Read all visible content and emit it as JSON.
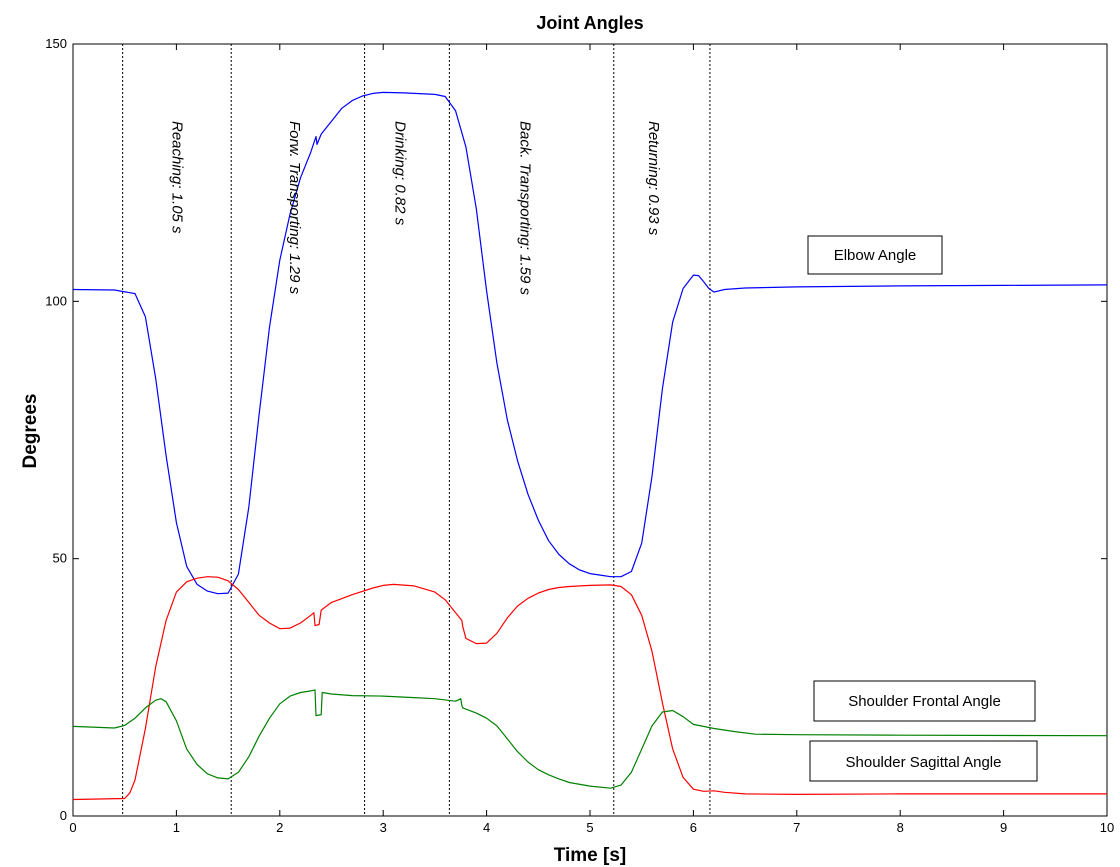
{
  "chart_data": {
    "type": "line",
    "title": "Joint Angles",
    "xlabel": "Time [s]",
    "ylabel": "Degrees",
    "xlim": [
      0,
      10
    ],
    "ylim": [
      0,
      150
    ],
    "xticks": [
      0,
      1,
      2,
      3,
      4,
      5,
      6,
      7,
      8,
      9,
      10
    ],
    "yticks": [
      0,
      50,
      100,
      150
    ],
    "grid": false,
    "phase_boundaries": [
      0.48,
      1.53,
      2.82,
      3.64,
      5.23,
      6.16
    ],
    "phases": [
      {
        "label": "Reaching: 1.05 s",
        "x": 0.96
      },
      {
        "label": "Forw. Transporting: 1.29 s",
        "x": 2.1
      },
      {
        "label": "Drinking: 0.82 s",
        "x": 3.12
      },
      {
        "label": "Back. Transporting: 1.59 s",
        "x": 4.33
      },
      {
        "label": "Returning: 0.93 s",
        "x": 5.57
      }
    ],
    "annotations": [
      {
        "text": "Elbow Angle",
        "series": "elbow"
      },
      {
        "text": "Shoulder Frontal Angle",
        "series": "frontal"
      },
      {
        "text": "Shoulder Sagittal Angle",
        "series": "sagittal"
      }
    ],
    "series": [
      {
        "id": "elbow",
        "color": "#0000ff",
        "x": [
          0,
          0.4,
          0.6,
          0.7,
          0.8,
          0.9,
          1.0,
          1.1,
          1.2,
          1.3,
          1.4,
          1.5,
          1.6,
          1.7,
          1.8,
          1.9,
          2.0,
          2.1,
          2.2,
          2.3,
          2.35,
          2.36,
          2.4,
          2.5,
          2.6,
          2.7,
          2.8,
          2.9,
          3.0,
          3.2,
          3.5,
          3.6,
          3.7,
          3.8,
          3.9,
          4.0,
          4.1,
          4.2,
          4.3,
          4.4,
          4.5,
          4.6,
          4.7,
          4.8,
          4.9,
          5.0,
          5.1,
          5.2,
          5.3,
          5.4,
          5.5,
          5.6,
          5.7,
          5.8,
          5.9,
          6.0,
          6.05,
          6.1,
          6.15,
          6.2,
          6.3,
          6.5,
          7.0,
          8.0,
          9.0,
          10.0
        ],
        "y": [
          102.3,
          102.2,
          101.5,
          97,
          85,
          70,
          57,
          48.5,
          45,
          43.7,
          43.2,
          43.3,
          47,
          60,
          78,
          95,
          108,
          117,
          124,
          129,
          132,
          130.5,
          132.5,
          135,
          137.5,
          139,
          139.9,
          140.4,
          140.6,
          140.5,
          140.2,
          139.8,
          137,
          130,
          118,
          102,
          88,
          77,
          69,
          62.5,
          57.5,
          53.5,
          50.8,
          49,
          47.8,
          47.1,
          46.8,
          46.5,
          46.5,
          47.5,
          53,
          66,
          83,
          96,
          102.5,
          105.1,
          105,
          103.8,
          102.5,
          101.8,
          102.3,
          102.6,
          102.8,
          103,
          103.1,
          103.2
        ]
      },
      {
        "id": "sagittal",
        "color": "#ff0000",
        "x": [
          0,
          0.5,
          0.55,
          0.6,
          0.7,
          0.8,
          0.9,
          1.0,
          1.1,
          1.2,
          1.3,
          1.4,
          1.5,
          1.6,
          1.7,
          1.8,
          1.9,
          2.0,
          2.1,
          2.2,
          2.3,
          2.33,
          2.34,
          2.38,
          2.4,
          2.5,
          2.7,
          2.9,
          3.0,
          3.1,
          3.3,
          3.5,
          3.6,
          3.7,
          3.76,
          3.77,
          3.8,
          3.9,
          4.0,
          4.1,
          4.2,
          4.3,
          4.4,
          4.5,
          4.6,
          4.7,
          4.8,
          5.0,
          5.2,
          5.3,
          5.4,
          5.5,
          5.6,
          5.7,
          5.8,
          5.9,
          6.0,
          6.1,
          6.2,
          6.3,
          6.5,
          7.0,
          8.0,
          10.0
        ],
        "y": [
          3.2,
          3.4,
          4.5,
          7,
          17,
          29,
          38,
          43.5,
          45.5,
          46.2,
          46.5,
          46.4,
          45.7,
          44,
          41.5,
          39,
          37.5,
          36.4,
          36.5,
          37.5,
          39,
          39.5,
          37,
          37.2,
          40,
          41.5,
          43,
          44.3,
          44.8,
          45,
          44.7,
          43.5,
          42,
          39.5,
          38,
          36.8,
          34.5,
          33.5,
          33.6,
          35.5,
          38.5,
          40.8,
          42.3,
          43.3,
          44,
          44.4,
          44.6,
          44.8,
          44.9,
          44.6,
          43,
          39,
          32,
          22,
          13,
          7.5,
          5.2,
          4.8,
          4.9,
          4.6,
          4.3,
          4.2,
          4.3,
          4.3
        ]
      },
      {
        "id": "frontal",
        "color": "#008000",
        "x": [
          0,
          0.4,
          0.5,
          0.6,
          0.7,
          0.8,
          0.85,
          0.9,
          1.0,
          1.1,
          1.2,
          1.3,
          1.4,
          1.5,
          1.6,
          1.7,
          1.8,
          1.9,
          2.0,
          2.1,
          2.2,
          2.3,
          2.34,
          2.35,
          2.4,
          2.41,
          2.5,
          2.7,
          3.0,
          3.3,
          3.5,
          3.7,
          3.75,
          3.76,
          3.77,
          3.9,
          4.0,
          4.1,
          4.2,
          4.3,
          4.4,
          4.5,
          4.6,
          4.7,
          4.8,
          5.0,
          5.2,
          5.3,
          5.4,
          5.5,
          5.6,
          5.7,
          5.8,
          5.9,
          6.0,
          6.2,
          6.4,
          6.6,
          7.0,
          8.0,
          10.0
        ],
        "y": [
          17.4,
          17.1,
          17.6,
          19,
          21,
          22.5,
          22.8,
          22.2,
          18.5,
          13,
          10,
          8.2,
          7.4,
          7.2,
          8.5,
          11.5,
          15.5,
          19,
          21.8,
          23.3,
          24,
          24.3,
          24.5,
          19.5,
          19.7,
          24,
          23.7,
          23.4,
          23.3,
          23,
          22.8,
          22.3,
          22.8,
          21.5,
          21,
          20,
          19,
          17.5,
          15,
          12.5,
          10.5,
          9,
          8,
          7.2,
          6.5,
          5.8,
          5.4,
          6,
          8.5,
          13,
          17.5,
          20.2,
          20.5,
          19.3,
          17.8,
          17,
          16.4,
          15.9,
          15.8,
          15.7,
          15.6
        ]
      }
    ]
  }
}
